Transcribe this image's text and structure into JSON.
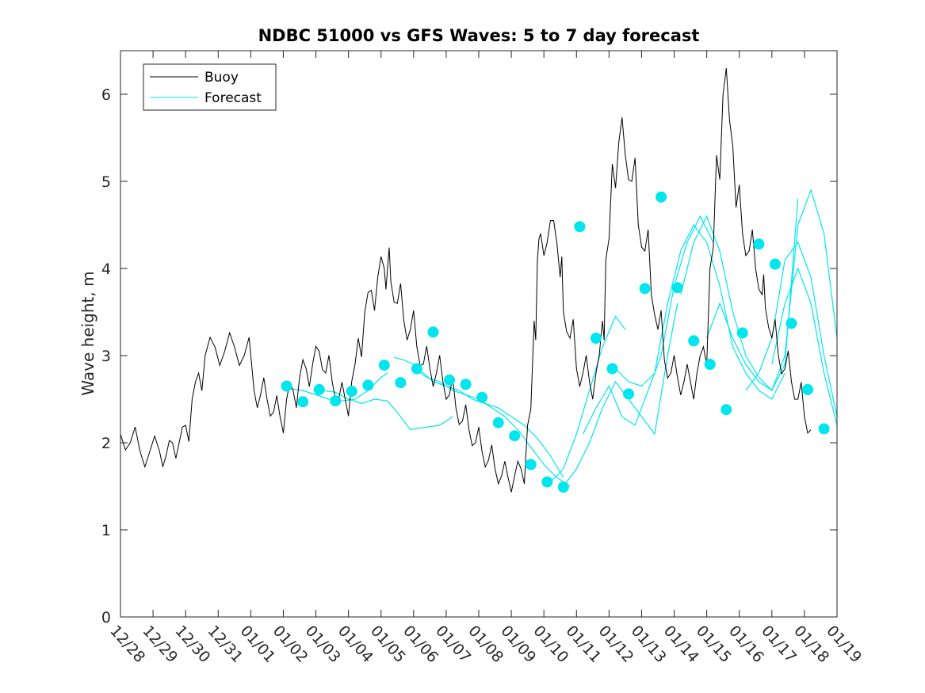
{
  "chart_data": {
    "type": "line",
    "title": "NDBC 51000 vs GFS Waves: 5 to 7 day forecast",
    "xlabel": "",
    "ylabel": "Wave height, m",
    "xlim": [
      0,
      22
    ],
    "ylim": [
      0,
      6.5
    ],
    "x_unit": "days since 12/28",
    "x_tick_labels": [
      "12/28",
      "12/29",
      "12/30",
      "12/31",
      "01/01",
      "01/02",
      "01/03",
      "01/04",
      "01/05",
      "01/06",
      "01/07",
      "01/08",
      "01/09",
      "01/10",
      "01/11",
      "01/12",
      "01/13",
      "01/14",
      "01/15",
      "01/16",
      "01/17",
      "01/18",
      "01/19"
    ],
    "y_ticks": [
      0,
      1,
      2,
      3,
      4,
      5,
      6
    ],
    "legend": {
      "location": "top-left",
      "entries": [
        "Buoy",
        "Forecast"
      ]
    },
    "colors": {
      "buoy": "#000000",
      "forecast": "#00e5ee",
      "axis": "#262626"
    },
    "series": [
      {
        "name": "Buoy",
        "style": "thin-black-line",
        "x": [
          -0.1,
          0.3,
          0.6,
          0.9,
          1.2,
          1.4,
          1.6,
          1.8,
          2.0,
          2.2,
          2.4,
          2.6,
          2.9,
          3.2,
          3.5,
          3.8,
          4.1,
          4.3,
          4.5,
          4.7,
          4.9,
          5.1,
          5.3,
          5.5,
          5.7,
          5.9,
          6.1,
          6.3,
          6.5,
          6.7,
          6.9,
          7.1,
          7.3,
          7.5,
          7.7,
          7.9,
          8.1,
          8.2,
          8.3,
          8.5,
          8.7,
          8.9,
          9.1,
          9.3,
          9.5,
          9.7,
          9.9,
          10.1,
          10.3,
          10.5,
          10.7,
          10.9,
          11.1,
          11.3,
          11.5,
          11.7,
          11.9,
          12.1,
          12.3,
          12.5,
          12.7,
          12.8,
          12.9,
          13.1,
          13.3,
          13.5,
          13.6,
          13.8,
          14.0,
          14.2,
          14.4,
          14.6,
          14.8,
          14.9,
          15.1,
          15.3,
          15.5,
          15.7,
          15.9,
          16.1,
          16.3,
          16.5,
          16.7,
          16.9,
          17.1,
          17.3,
          17.5,
          17.7,
          17.9,
          18.1,
          18.3,
          18.5,
          18.7,
          18.9,
          19.1,
          19.3,
          19.5,
          19.7,
          19.8,
          20.0,
          20.2,
          20.4,
          20.6,
          20.8,
          21.0,
          21.2
        ],
        "y": [
          2.1,
          2.0,
          1.9,
          1.9,
          1.9,
          1.85,
          2.0,
          2.0,
          2.2,
          2.5,
          2.8,
          3.0,
          3.1,
          3.05,
          3.1,
          3.0,
          2.6,
          2.55,
          2.5,
          2.35,
          2.3,
          2.5,
          2.6,
          2.75,
          2.85,
          2.9,
          3.05,
          2.8,
          2.7,
          2.5,
          2.5,
          2.7,
          3.2,
          3.5,
          3.75,
          3.9,
          4.0,
          4.0,
          3.85,
          3.6,
          3.4,
          3.3,
          3.1,
          2.9,
          2.85,
          2.8,
          2.7,
          2.55,
          2.4,
          2.25,
          2.15,
          2.0,
          1.9,
          1.8,
          1.7,
          1.62,
          1.6,
          1.62,
          1.7,
          2.2,
          3.4,
          4.1,
          4.4,
          4.3,
          4.55,
          3.9,
          3.5,
          3.2,
          2.85,
          2.8,
          2.7,
          2.8,
          3.4,
          4.1,
          5.2,
          5.45,
          5.3,
          5.0,
          4.5,
          4.2,
          3.7,
          3.3,
          2.95,
          2.8,
          2.75,
          2.7,
          2.7,
          2.8,
          3.1,
          4.0,
          5.3,
          6.0,
          5.7,
          4.7,
          4.4,
          4.2,
          4.0,
          3.7,
          3.55,
          3.2,
          3.0,
          2.85,
          2.7,
          2.5,
          2.3,
          2.15
        ]
      },
      {
        "name": "Forecast",
        "style": "thin-cyan-lines",
        "segments": [
          {
            "x": [
              5.2,
              5.6,
              6.0,
              6.4,
              6.8,
              7.2,
              7.6,
              8.0,
              8.2
            ],
            "y": [
              2.62,
              2.6,
              2.55,
              2.5,
              2.48,
              2.5,
              2.6,
              2.75,
              2.8
            ]
          },
          {
            "x": [
              6.2,
              6.6,
              7.0,
              7.4,
              7.8,
              8.2,
              8.6,
              8.9,
              9.4,
              9.8,
              10.2
            ],
            "y": [
              2.6,
              2.58,
              2.5,
              2.45,
              2.5,
              2.48,
              2.3,
              2.15,
              2.18,
              2.2,
              2.3
            ]
          },
          {
            "x": [
              8.4,
              8.7,
              9.0,
              9.3,
              9.6,
              10.0,
              10.4,
              10.8,
              11.2,
              11.6,
              12.0,
              12.4,
              12.8,
              13.2,
              13.6
            ],
            "y": [
              2.98,
              2.95,
              2.9,
              2.8,
              2.7,
              2.65,
              2.6,
              2.5,
              2.45,
              2.4,
              2.3,
              2.2,
              2.05,
              1.85,
              1.6
            ]
          },
          {
            "x": [
              9.0,
              9.4,
              9.8,
              10.2,
              10.6,
              11.0,
              11.4,
              11.8,
              12.2,
              12.6,
              13.0,
              13.4,
              13.8
            ],
            "y": [
              2.85,
              2.75,
              2.7,
              2.6,
              2.55,
              2.5,
              2.4,
              2.3,
              2.15,
              1.95,
              1.75,
              1.6,
              1.5
            ]
          },
          {
            "x": [
              13.2,
              13.6,
              14.0,
              14.4,
              14.8,
              15.2,
              15.5
            ],
            "y": [
              1.55,
              1.7,
              2.1,
              2.6,
              3.1,
              3.45,
              3.3
            ]
          },
          {
            "x": [
              13.6,
              14.0,
              14.4,
              14.8,
              15.2,
              15.6,
              16.0,
              16.4,
              16.8,
              17.1
            ],
            "y": [
              1.5,
              1.7,
              2.0,
              2.4,
              2.7,
              2.5,
              2.3,
              2.1,
              3.0,
              3.6
            ]
          },
          {
            "x": [
              14.2,
              14.6,
              15.0,
              15.4,
              15.8,
              16.2,
              16.6,
              17.0,
              17.4,
              17.8,
              18.2
            ],
            "y": [
              2.1,
              2.4,
              2.65,
              2.3,
              2.2,
              2.6,
              3.0,
              3.8,
              4.3,
              4.6,
              4.3
            ]
          },
          {
            "x": [
              15.2,
              15.6,
              16.0,
              16.4,
              16.8,
              17.2,
              17.6,
              18.0,
              18.4,
              18.8,
              19.2,
              19.6,
              20.0,
              20.4
            ],
            "y": [
              2.85,
              2.7,
              2.65,
              2.8,
              3.6,
              4.2,
              4.5,
              4.3,
              3.8,
              3.1,
              2.8,
              2.6,
              2.5,
              2.8
            ]
          },
          {
            "x": [
              17.2,
              17.6,
              18.0,
              18.4,
              18.8,
              19.2,
              19.6,
              20.0,
              20.4,
              20.8
            ],
            "y": [
              3.7,
              4.3,
              4.6,
              4.2,
              3.5,
              3.0,
              2.75,
              2.6,
              2.9,
              4.8
            ]
          },
          {
            "x": [
              18.0,
              18.4,
              18.8,
              19.2,
              19.6,
              20.0,
              20.4,
              20.8,
              21.2,
              21.6,
              22.0
            ],
            "y": [
              3.2,
              3.6,
              3.2,
              2.9,
              2.7,
              2.6,
              3.0,
              4.5,
              4.9,
              4.4,
              3.2
            ]
          },
          {
            "x": [
              19.2,
              19.6,
              20.0,
              20.4,
              20.8,
              21.2,
              21.6,
              22.0
            ],
            "y": [
              2.6,
              2.8,
              3.2,
              4.1,
              4.3,
              3.9,
              3.0,
              2.3
            ]
          },
          {
            "x": [
              20.0,
              20.4,
              20.8,
              21.2,
              21.6,
              22.0
            ],
            "y": [
              2.9,
              3.6,
              4.0,
              3.6,
              2.8,
              2.2
            ]
          }
        ],
        "markers": {
          "x": [
            5.1,
            5.6,
            6.1,
            6.6,
            7.1,
            7.6,
            8.1,
            8.6,
            9.1,
            9.6,
            10.1,
            10.6,
            11.1,
            11.6,
            12.1,
            12.6,
            13.1,
            13.6,
            14.1,
            14.6,
            15.1,
            15.6,
            16.1,
            16.6,
            17.1,
            17.6,
            18.1,
            18.6,
            19.1,
            19.6,
            20.1,
            20.6,
            21.1,
            21.6
          ],
          "y": [
            2.65,
            2.47,
            2.61,
            2.48,
            2.59,
            2.66,
            2.89,
            2.69,
            2.85,
            3.27,
            2.72,
            2.67,
            2.52,
            2.23,
            2.08,
            1.75,
            1.55,
            1.49,
            4.48,
            3.2,
            2.85,
            2.56,
            3.77,
            4.82,
            3.78,
            3.17,
            2.9,
            2.38,
            3.26,
            4.28,
            4.05,
            3.37,
            2.61,
            2.16
          ]
        }
      }
    ]
  }
}
